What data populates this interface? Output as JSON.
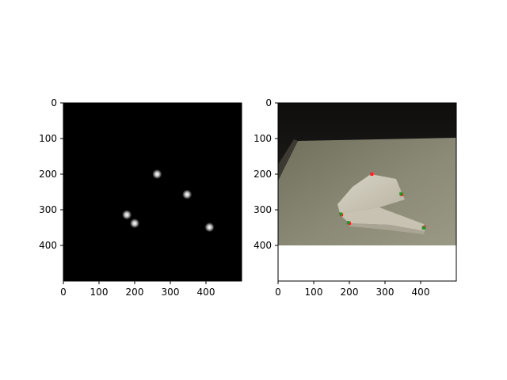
{
  "chart_data": [
    {
      "type": "heatmap",
      "title": "",
      "xlabel": "",
      "ylabel": "",
      "xlim": [
        0,
        500
      ],
      "ylim": [
        500,
        0
      ],
      "xticks": [
        "0",
        "100",
        "200",
        "300",
        "400"
      ],
      "yticks": [
        "0",
        "100",
        "200",
        "300",
        "400"
      ],
      "grid": false,
      "background": "#000000",
      "hotspots": [
        {
          "x": 263,
          "y": 200
        },
        {
          "x": 347,
          "y": 257
        },
        {
          "x": 178,
          "y": 314
        },
        {
          "x": 200,
          "y": 338
        },
        {
          "x": 410,
          "y": 349
        }
      ]
    },
    {
      "type": "scatter",
      "title": "",
      "xlabel": "",
      "ylabel": "",
      "xlim": [
        0,
        500
      ],
      "ylim": [
        500,
        0
      ],
      "xticks": [
        "0",
        "100",
        "200",
        "300",
        "400"
      ],
      "yticks": [
        "0",
        "100",
        "200",
        "300",
        "400"
      ],
      "grid": false,
      "image_extent_y": [
        0,
        400
      ],
      "series": [
        {
          "color": "#ff2020",
          "points": [
            {
              "x": 263,
              "y": 200
            },
            {
              "x": 347,
              "y": 257
            },
            {
              "x": 178,
              "y": 314
            },
            {
              "x": 200,
              "y": 338
            },
            {
              "x": 410,
              "y": 349
            }
          ]
        },
        {
          "color": "#1a9a2a",
          "points": [
            {
              "x": 345,
              "y": 255
            },
            {
              "x": 176,
              "y": 312
            },
            {
              "x": 197,
              "y": 336
            },
            {
              "x": 408,
              "y": 351
            }
          ]
        }
      ]
    }
  ]
}
